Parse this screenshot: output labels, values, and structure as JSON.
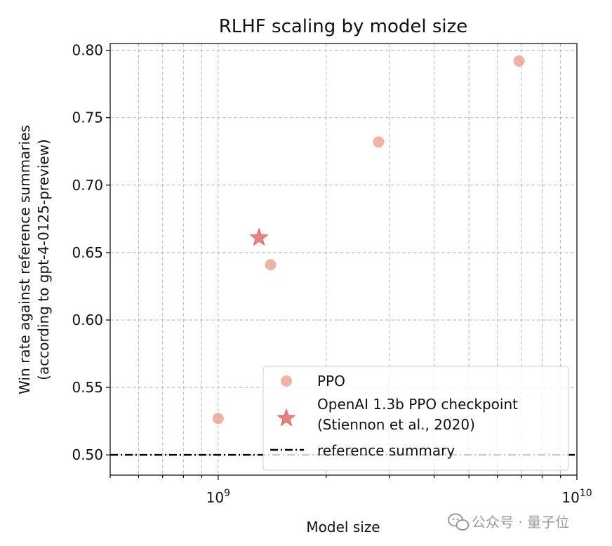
{
  "chart_data": {
    "type": "scatter",
    "title": "RLHF scaling by model size",
    "xlabel": "Model size",
    "ylabel_line1": "Win rate against reference summaries",
    "ylabel_line2": "(according to gpt-4-0125-preview)",
    "xscale": "log",
    "xlim": [
      500000000,
      10000000000
    ],
    "ylim": [
      0.485,
      0.805
    ],
    "grid": true,
    "y_ticks": [
      0.5,
      0.55,
      0.6,
      0.65,
      0.7,
      0.75,
      0.8
    ],
    "y_tick_labels": [
      "0.50",
      "0.55",
      "0.60",
      "0.65",
      "0.70",
      "0.75",
      "0.80"
    ],
    "x_ticks": [
      {
        "value": 1000000000,
        "base": "10",
        "exp": "9"
      },
      {
        "value": 10000000000,
        "base": "10",
        "exp": "10"
      }
    ],
    "series": [
      {
        "name": "PPO",
        "marker": "circle",
        "color": "#E8988A",
        "points": [
          {
            "x": 1000000000,
            "y": 0.527
          },
          {
            "x": 1400000000,
            "y": 0.641
          },
          {
            "x": 2800000000,
            "y": 0.732
          },
          {
            "x": 6900000000,
            "y": 0.792
          }
        ]
      },
      {
        "name": "OpenAI 1.3b PPO checkpoint (Stiennon et al., 2020)",
        "marker": "star",
        "color": "#E46B6B",
        "points": [
          {
            "x": 1300000000,
            "y": 0.661
          }
        ]
      }
    ],
    "reference_line": {
      "y": 0.5,
      "label": "reference summary",
      "style": "dashdot",
      "color": "#000000"
    },
    "legend": {
      "position": "lower-right",
      "entries": [
        {
          "label_lines": [
            "PPO"
          ],
          "marker": "circle"
        },
        {
          "label_lines": [
            "OpenAI 1.3b PPO checkpoint",
            "(Stiennon et al., 2020)"
          ],
          "marker": "star"
        },
        {
          "label_lines": [
            "reference summary"
          ],
          "marker": "dashdot"
        }
      ]
    }
  },
  "watermark": {
    "text": "公众号 · 量子位",
    "icon": "wechat-icon"
  }
}
